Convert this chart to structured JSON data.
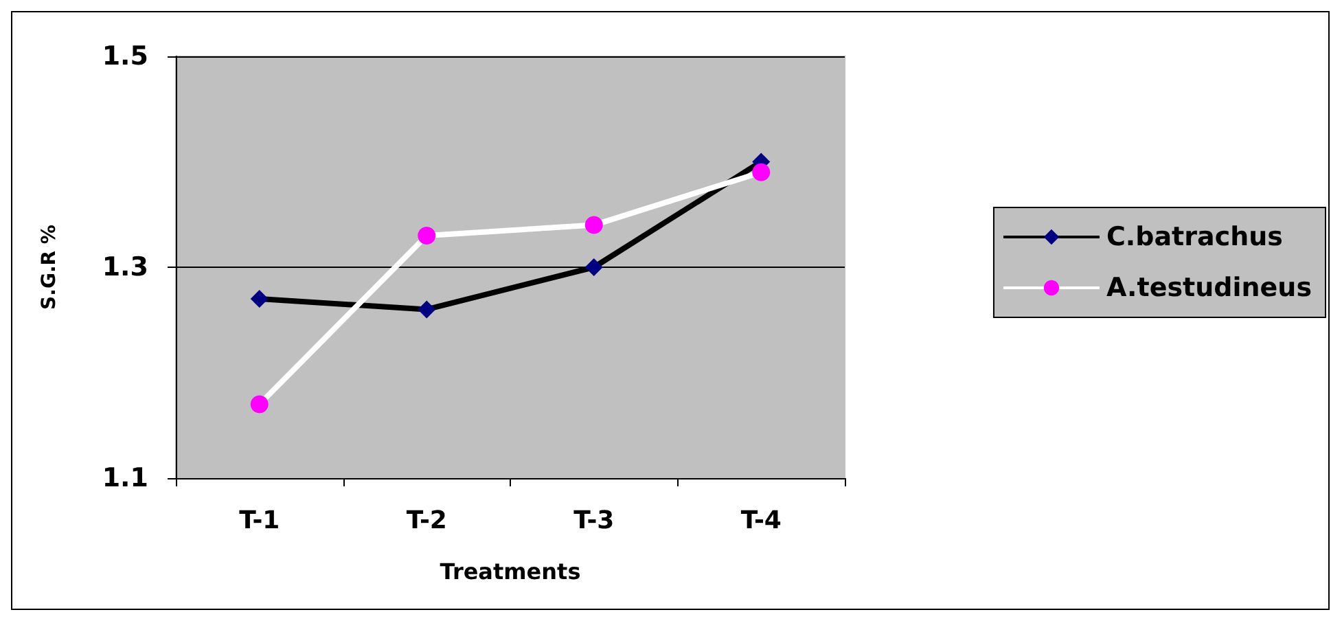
{
  "chart_data": {
    "type": "line",
    "xlabel": "Treatments",
    "ylabel": "S.G.R %",
    "categories": [
      "T-1",
      "T-2",
      "T-3",
      "T-4"
    ],
    "series": [
      {
        "name": "C.batrachus",
        "color": "#000000",
        "marker": "diamond",
        "values": [
          1.27,
          1.26,
          1.3,
          1.4
        ]
      },
      {
        "name": "A.testudineus",
        "color": "#ffffff",
        "marker": "circle",
        "values": [
          1.17,
          1.33,
          1.34,
          1.39
        ]
      }
    ],
    "ylim": [
      1.1,
      1.5
    ],
    "yticks": [
      1.1,
      1.3,
      1.5
    ],
    "grid": "y",
    "legend": "right"
  }
}
